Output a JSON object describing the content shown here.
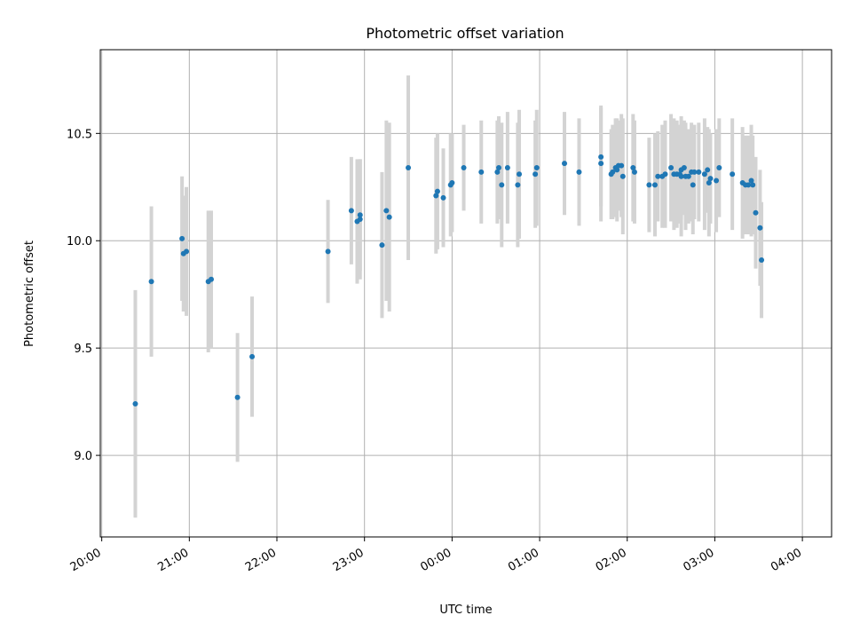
{
  "chart_data": {
    "type": "scatter",
    "title": "Photometric offset variation",
    "xlabel": "UTC time",
    "ylabel": "Photometric offset",
    "x_unit": "UTC time (HH:MM), night spanning midnight",
    "x_ticks": [
      "20:00",
      "21:00",
      "22:00",
      "23:00",
      "00:00",
      "01:00",
      "02:00",
      "03:00",
      "04:00"
    ],
    "y_ticks": [
      9.0,
      9.5,
      10.0,
      10.5
    ],
    "xlim": [
      "19:59",
      "04:20"
    ],
    "ylim": [
      8.62,
      10.89
    ],
    "grid": true,
    "legend": "none",
    "colors": {
      "marker": "#1f77b4",
      "errorbar": "#d3d3d3",
      "grid": "#b0b0b0"
    },
    "series": [
      {
        "x": [
          "20:23",
          "20:34",
          "20:55",
          "20:56",
          "20:58",
          "21:13",
          "21:15",
          "21:33",
          "21:43",
          "22:35",
          "22:51",
          "22:55",
          "22:57",
          "22:57",
          "23:12",
          "23:15",
          "23:17",
          "23:30",
          "23:49",
          "23:50",
          "23:54",
          "23:59",
          "00:00",
          "00:08",
          "00:20",
          "00:31",
          "00:32",
          "00:34",
          "00:38",
          "00:45",
          "00:46",
          "00:57",
          "00:58",
          "01:17",
          "01:27",
          "01:42",
          "01:42",
          "01:49",
          "01:50",
          "01:52",
          "01:53",
          "01:54",
          "01:56",
          "01:57",
          "02:04",
          "02:05",
          "02:15",
          "02:19",
          "02:21",
          "02:24",
          "02:26",
          "02:30",
          "02:32",
          "02:34",
          "02:36",
          "02:37",
          "02:37",
          "02:39",
          "02:40",
          "02:42",
          "02:44",
          "02:45",
          "02:46",
          "02:49",
          "02:53",
          "02:55",
          "02:56",
          "02:57",
          "03:01",
          "03:03",
          "03:12",
          "03:19",
          "03:21",
          "03:23",
          "03:25",
          "03:26",
          "03:28",
          "03:31",
          "03:32"
        ],
        "y": [
          9.24,
          9.81,
          10.01,
          9.94,
          9.95,
          9.81,
          9.82,
          9.27,
          9.46,
          9.95,
          10.14,
          10.09,
          10.12,
          10.1,
          9.98,
          10.14,
          10.11,
          10.34,
          10.21,
          10.23,
          10.2,
          10.26,
          10.27,
          10.34,
          10.32,
          10.32,
          10.34,
          10.26,
          10.34,
          10.26,
          10.31,
          10.31,
          10.34,
          10.36,
          10.32,
          10.39,
          10.36,
          10.31,
          10.32,
          10.34,
          10.33,
          10.35,
          10.35,
          10.3,
          10.34,
          10.32,
          10.26,
          10.26,
          10.3,
          10.3,
          10.31,
          10.34,
          10.31,
          10.31,
          10.31,
          10.33,
          10.3,
          10.34,
          10.3,
          10.3,
          10.32,
          10.26,
          10.32,
          10.32,
          10.31,
          10.33,
          10.27,
          10.29,
          10.28,
          10.34,
          10.31,
          10.27,
          10.26,
          10.26,
          10.28,
          10.26,
          10.13,
          10.06,
          9.91
        ],
        "yerr": [
          0.53,
          0.35,
          0.29,
          0.27,
          0.3,
          0.33,
          0.32,
          0.3,
          0.28,
          0.24,
          0.25,
          0.29,
          0.26,
          0.28,
          0.34,
          0.42,
          0.44,
          0.43,
          0.27,
          0.27,
          0.23,
          0.24,
          0.23,
          0.2,
          0.24,
          0.24,
          0.24,
          0.29,
          0.26,
          0.29,
          0.3,
          0.25,
          0.27,
          0.24,
          0.25,
          0.23,
          0.27,
          0.21,
          0.22,
          0.23,
          0.24,
          0.21,
          0.24,
          0.27,
          0.25,
          0.24,
          0.22,
          0.24,
          0.21,
          0.24,
          0.25,
          0.25,
          0.26,
          0.25,
          0.23,
          0.23,
          0.28,
          0.22,
          0.25,
          0.22,
          0.23,
          0.23,
          0.22,
          0.23,
          0.26,
          0.2,
          0.25,
          0.21,
          0.24,
          0.23,
          0.26,
          0.26,
          0.23,
          0.23,
          0.26,
          0.23,
          0.26,
          0.27,
          0.27
        ]
      }
    ]
  }
}
